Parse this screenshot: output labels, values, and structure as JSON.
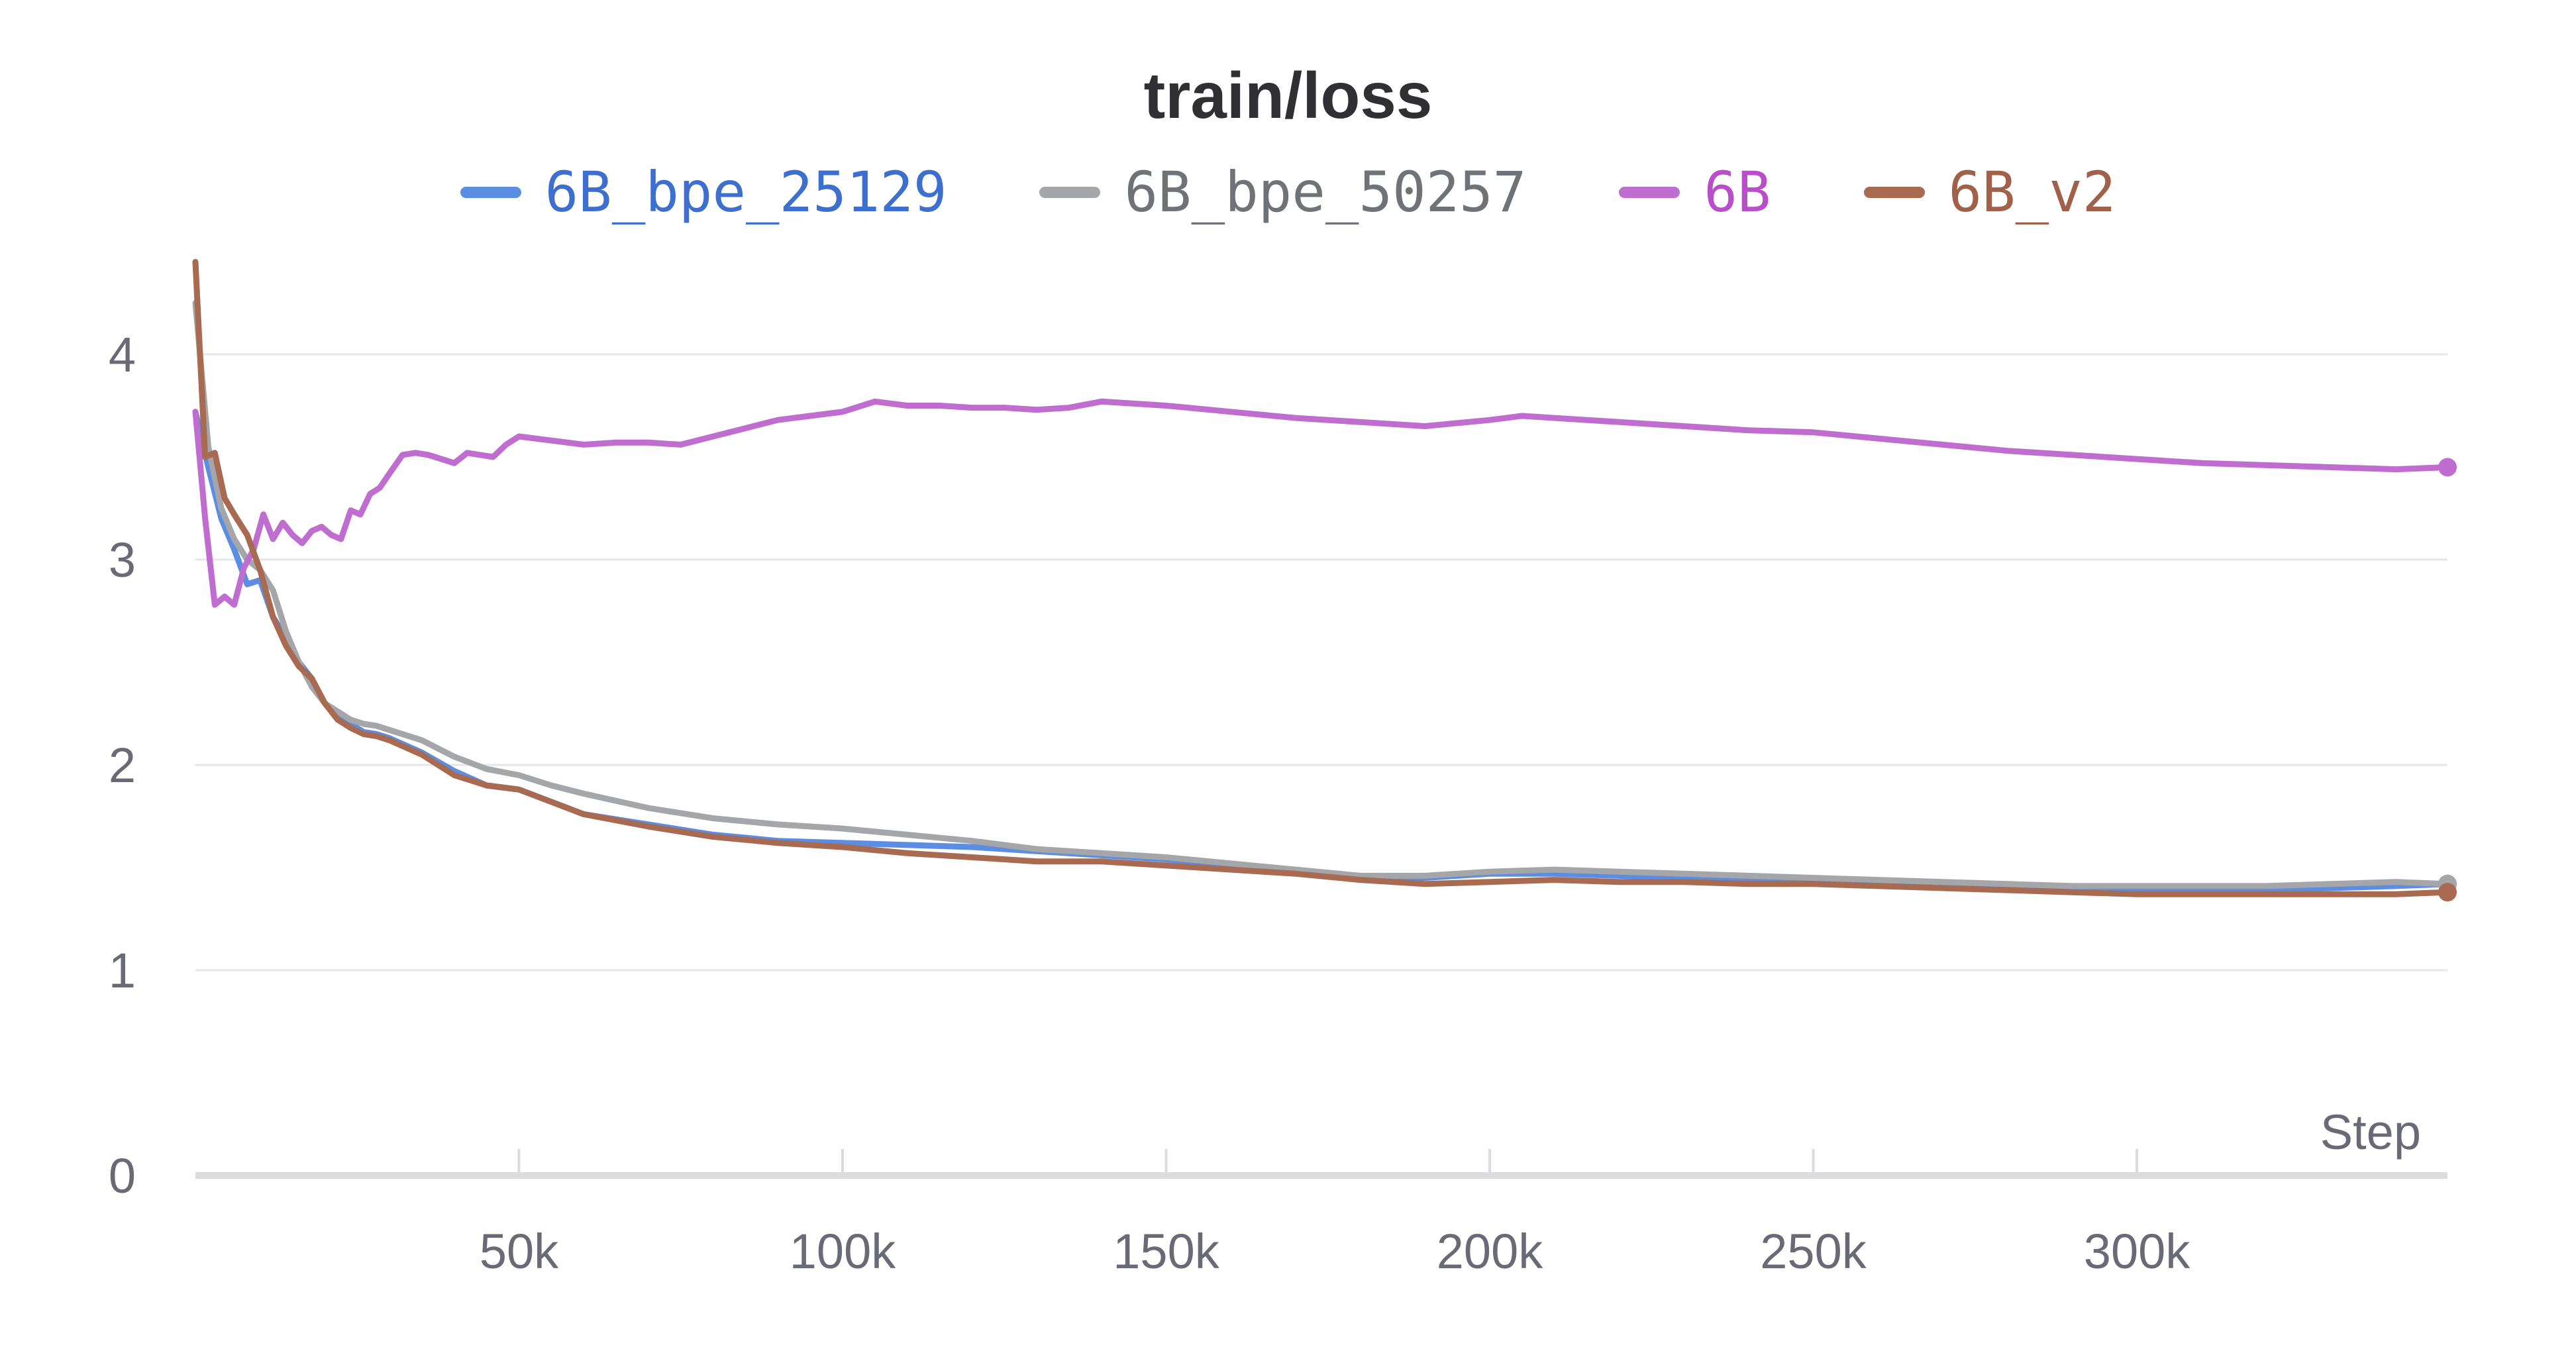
{
  "chart_data": {
    "type": "line",
    "title": "train/loss",
    "xlabel": "Step",
    "ylabel": "",
    "xlim": [
      0,
      348000
    ],
    "ylim": [
      0,
      4.5
    ],
    "x_ticks": [
      50000,
      100000,
      150000,
      200000,
      250000,
      300000
    ],
    "x_tick_labels": [
      "50k",
      "100k",
      "150k",
      "200k",
      "250k",
      "300k"
    ],
    "y_ticks": [
      0,
      1,
      2,
      3,
      4
    ],
    "y_tick_labels": [
      "0",
      "1",
      "2",
      "3",
      "4"
    ],
    "grid": true,
    "legend_position": "top-center",
    "series": [
      {
        "name": "6B_bpe_25129",
        "color": "#5b8ee3",
        "label_color": "#3c6fcf",
        "x": [
          0,
          2000,
          4000,
          6000,
          8000,
          10000,
          12000,
          14000,
          16000,
          18000,
          20000,
          22000,
          24000,
          26000,
          28000,
          30000,
          35000,
          40000,
          45000,
          50000,
          55000,
          60000,
          70000,
          80000,
          90000,
          100000,
          110000,
          120000,
          130000,
          140000,
          150000,
          160000,
          170000,
          180000,
          190000,
          200000,
          210000,
          220000,
          230000,
          240000,
          250000,
          260000,
          270000,
          280000,
          290000,
          300000,
          310000,
          320000,
          330000,
          340000,
          348000
        ],
        "y": [
          3.72,
          3.45,
          3.2,
          3.05,
          2.88,
          2.9,
          2.72,
          2.62,
          2.5,
          2.42,
          2.3,
          2.25,
          2.2,
          2.16,
          2.15,
          2.13,
          2.06,
          1.97,
          1.9,
          1.88,
          1.82,
          1.76,
          1.71,
          1.66,
          1.63,
          1.62,
          1.61,
          1.6,
          1.58,
          1.56,
          1.54,
          1.51,
          1.48,
          1.45,
          1.45,
          1.47,
          1.47,
          1.46,
          1.45,
          1.44,
          1.44,
          1.43,
          1.42,
          1.41,
          1.4,
          1.39,
          1.39,
          1.39,
          1.4,
          1.41,
          1.42
        ]
      },
      {
        "name": "6B_bpe_50257",
        "color": "#a4a6aa",
        "label_color": "#6f7277",
        "x": [
          0,
          2000,
          4000,
          6000,
          8000,
          10000,
          12000,
          14000,
          16000,
          18000,
          20000,
          22000,
          24000,
          26000,
          28000,
          30000,
          35000,
          40000,
          45000,
          50000,
          55000,
          60000,
          70000,
          80000,
          90000,
          100000,
          110000,
          120000,
          130000,
          140000,
          150000,
          160000,
          170000,
          180000,
          190000,
          200000,
          210000,
          220000,
          230000,
          240000,
          250000,
          260000,
          270000,
          280000,
          290000,
          300000,
          310000,
          320000,
          330000,
          340000,
          348000
        ],
        "y": [
          4.25,
          3.55,
          3.25,
          3.1,
          3.0,
          2.95,
          2.85,
          2.65,
          2.5,
          2.38,
          2.3,
          2.26,
          2.22,
          2.2,
          2.19,
          2.17,
          2.12,
          2.04,
          1.98,
          1.95,
          1.9,
          1.86,
          1.79,
          1.74,
          1.71,
          1.69,
          1.66,
          1.63,
          1.59,
          1.57,
          1.55,
          1.52,
          1.49,
          1.46,
          1.46,
          1.48,
          1.49,
          1.48,
          1.47,
          1.46,
          1.45,
          1.44,
          1.43,
          1.42,
          1.41,
          1.41,
          1.41,
          1.41,
          1.42,
          1.43,
          1.42
        ]
      },
      {
        "name": "6B",
        "color": "#c06dd0",
        "label_color": "#b84fc8",
        "x": [
          0,
          1500,
          3000,
          4500,
          6000,
          7500,
          9000,
          10500,
          12000,
          13500,
          15000,
          16500,
          18000,
          19500,
          21000,
          22500,
          24000,
          25500,
          27000,
          28500,
          30000,
          32000,
          34000,
          36000,
          38000,
          40000,
          42000,
          44000,
          46000,
          48000,
          50000,
          55000,
          60000,
          65000,
          70000,
          75000,
          80000,
          85000,
          90000,
          95000,
          100000,
          105000,
          110000,
          115000,
          120000,
          125000,
          130000,
          135000,
          140000,
          145000,
          150000,
          160000,
          170000,
          180000,
          190000,
          200000,
          205000,
          210000,
          220000,
          230000,
          240000,
          250000,
          260000,
          270000,
          280000,
          290000,
          300000,
          310000,
          320000,
          330000,
          340000,
          348000
        ],
        "y": [
          3.72,
          3.2,
          2.78,
          2.82,
          2.78,
          2.96,
          3.05,
          3.22,
          3.1,
          3.18,
          3.12,
          3.08,
          3.14,
          3.16,
          3.12,
          3.1,
          3.24,
          3.22,
          3.32,
          3.35,
          3.42,
          3.51,
          3.52,
          3.51,
          3.49,
          3.47,
          3.52,
          3.51,
          3.5,
          3.56,
          3.6,
          3.58,
          3.56,
          3.57,
          3.57,
          3.56,
          3.6,
          3.64,
          3.68,
          3.7,
          3.72,
          3.77,
          3.75,
          3.75,
          3.74,
          3.74,
          3.73,
          3.74,
          3.77,
          3.76,
          3.75,
          3.72,
          3.69,
          3.67,
          3.65,
          3.68,
          3.7,
          3.69,
          3.67,
          3.65,
          3.63,
          3.62,
          3.59,
          3.56,
          3.53,
          3.51,
          3.49,
          3.47,
          3.46,
          3.45,
          3.44,
          3.45
        ]
      },
      {
        "name": "6B_v2",
        "color": "#a86a51",
        "label_color": "#a0604a",
        "x": [
          0,
          1500,
          3000,
          4500,
          6000,
          8000,
          10000,
          12000,
          14000,
          16000,
          18000,
          20000,
          22000,
          24000,
          26000,
          28000,
          30000,
          35000,
          40000,
          45000,
          50000,
          55000,
          60000,
          70000,
          80000,
          90000,
          100000,
          110000,
          120000,
          130000,
          140000,
          150000,
          160000,
          170000,
          180000,
          190000,
          200000,
          210000,
          220000,
          230000,
          240000,
          250000,
          260000,
          270000,
          280000,
          290000,
          300000,
          310000,
          320000,
          330000,
          340000,
          348000
        ],
        "y": [
          4.45,
          3.5,
          3.52,
          3.3,
          3.22,
          3.12,
          2.95,
          2.72,
          2.58,
          2.48,
          2.42,
          2.3,
          2.22,
          2.18,
          2.15,
          2.14,
          2.12,
          2.05,
          1.95,
          1.9,
          1.88,
          1.82,
          1.76,
          1.7,
          1.65,
          1.62,
          1.6,
          1.57,
          1.55,
          1.53,
          1.53,
          1.51,
          1.49,
          1.47,
          1.44,
          1.42,
          1.43,
          1.44,
          1.43,
          1.43,
          1.42,
          1.42,
          1.41,
          1.4,
          1.39,
          1.38,
          1.37,
          1.37,
          1.37,
          1.37,
          1.37,
          1.38
        ]
      }
    ]
  }
}
